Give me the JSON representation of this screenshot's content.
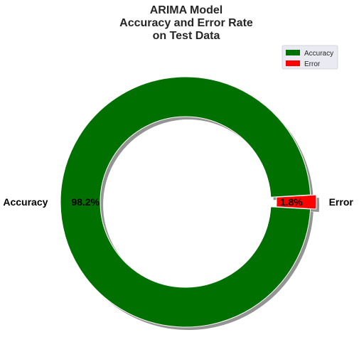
{
  "chart_data": {
    "type": "pie",
    "donut": true,
    "title": "ARIMA Model\nAccuracy and Error Rate\non Test Data",
    "categories": [
      "Accuracy",
      "Error"
    ],
    "values": [
      98.2,
      1.8
    ],
    "value_labels": [
      "98.2%",
      "1.8%"
    ],
    "colors": [
      "#007000",
      "#ff0000"
    ],
    "exploded": [
      false,
      true
    ],
    "shadow": true,
    "legend": {
      "position": "top-right",
      "entries": [
        "Accuracy",
        "Error"
      ]
    }
  }
}
